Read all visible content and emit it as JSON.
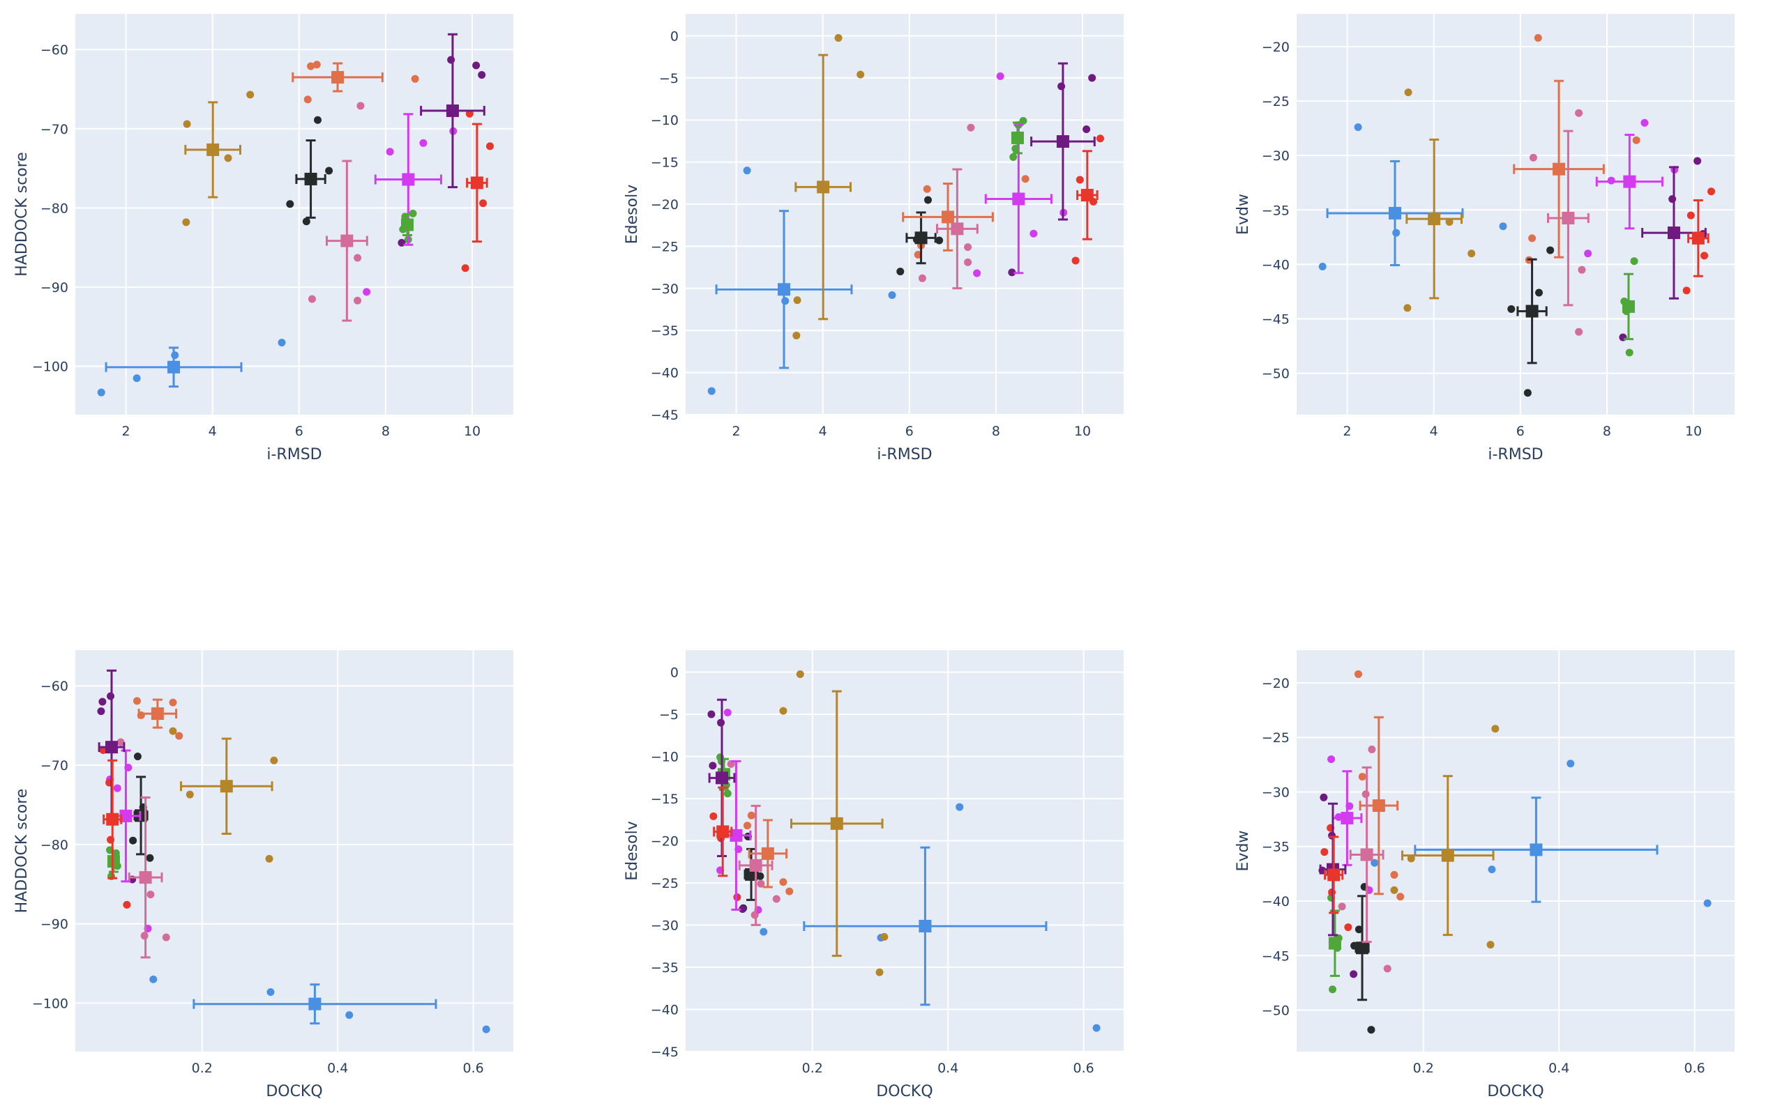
{
  "chart_data": {
    "type": "scatter",
    "description": "3x2 grid of scatter plots with per-group mean markers and standard-deviation error bars",
    "groups": [
      {
        "name": "group-blue",
        "color": "#4a90e2",
        "points": [
          {
            "irmsd": 1.43,
            "dockq": 0.619,
            "haddock": -103.3,
            "edesolv": -42.2,
            "evdw": -40.2
          },
          {
            "irmsd": 2.25,
            "dockq": 0.417,
            "haddock": -101.5,
            "edesolv": -16.0,
            "evdw": -27.4
          },
          {
            "irmsd": 3.13,
            "dockq": 0.301,
            "haddock": -98.6,
            "edesolv": -31.5,
            "evdw": -37.1
          },
          {
            "irmsd": 5.6,
            "dockq": 0.128,
            "haddock": -97.0,
            "edesolv": -30.8,
            "evdw": -36.5
          }
        ]
      },
      {
        "name": "group-gold",
        "color": "#b5852a",
        "points": [
          {
            "irmsd": 3.41,
            "dockq": 0.306,
            "haddock": -69.4,
            "edesolv": -31.4,
            "evdw": -24.2
          },
          {
            "irmsd": 3.39,
            "dockq": 0.299,
            "haddock": -81.8,
            "edesolv": -35.6,
            "evdw": -44.0
          },
          {
            "irmsd": 4.36,
            "dockq": 0.182,
            "haddock": -73.7,
            "edesolv": -0.25,
            "evdw": -36.1
          },
          {
            "irmsd": 4.87,
            "dockq": 0.157,
            "haddock": -65.7,
            "edesolv": -4.6,
            "evdw": -39.0
          }
        ]
      },
      {
        "name": "group-black",
        "color": "#262a2b",
        "points": [
          {
            "irmsd": 5.79,
            "dockq": 0.098,
            "haddock": -79.5,
            "edesolv": -28.0,
            "evdw": -44.1
          },
          {
            "irmsd": 6.17,
            "dockq": 0.123,
            "haddock": -81.7,
            "edesolv": -24.2,
            "evdw": -51.8
          },
          {
            "irmsd": 6.43,
            "dockq": 0.105,
            "haddock": -68.9,
            "edesolv": -19.5,
            "evdw": -42.6
          },
          {
            "irmsd": 6.69,
            "dockq": 0.113,
            "haddock": -75.3,
            "edesolv": -24.3,
            "evdw": -38.7
          }
        ]
      },
      {
        "name": "group-orange",
        "color": "#e0704a",
        "points": [
          {
            "irmsd": 6.27,
            "dockq": 0.157,
            "haddock": -62.1,
            "edesolv": -24.9,
            "evdw": -37.6
          },
          {
            "irmsd": 6.41,
            "dockq": 0.104,
            "haddock": -61.9,
            "edesolv": -18.2,
            "evdw": -19.2
          },
          {
            "irmsd": 6.2,
            "dockq": 0.166,
            "haddock": -66.3,
            "edesolv": -26.0,
            "evdw": -39.6
          },
          {
            "irmsd": 8.68,
            "dockq": 0.11,
            "haddock": -63.7,
            "edesolv": -17.0,
            "evdw": -28.6
          }
        ]
      },
      {
        "name": "group-pink",
        "color": "#d46c9a",
        "points": [
          {
            "irmsd": 7.42,
            "dockq": 0.08,
            "haddock": -67.1,
            "edesolv": -10.9,
            "evdw": -40.5
          },
          {
            "irmsd": 7.35,
            "dockq": 0.124,
            "haddock": -86.3,
            "edesolv": -25.1,
            "evdw": -26.1
          },
          {
            "irmsd": 6.3,
            "dockq": 0.115,
            "haddock": -91.5,
            "edesolv": -28.8,
            "evdw": -30.2
          },
          {
            "irmsd": 7.35,
            "dockq": 0.147,
            "haddock": -91.7,
            "edesolv": -26.9,
            "evdw": -46.2
          }
        ]
      },
      {
        "name": "group-magenta",
        "color": "#d33bf0",
        "points": [
          {
            "irmsd": 8.1,
            "dockq": 0.075,
            "haddock": -72.9,
            "edesolv": -4.8,
            "evdw": -32.3
          },
          {
            "irmsd": 8.87,
            "dockq": 0.064,
            "haddock": -71.8,
            "edesolv": -23.5,
            "evdw": -27.0
          },
          {
            "irmsd": 9.56,
            "dockq": 0.091,
            "haddock": -70.3,
            "edesolv": -21.0,
            "evdw": -31.3
          },
          {
            "irmsd": 7.56,
            "dockq": 0.12,
            "haddock": -90.6,
            "edesolv": -28.2,
            "evdw": -39.0
          }
        ]
      },
      {
        "name": "group-green",
        "color": "#4fa73a",
        "points": [
          {
            "irmsd": 8.63,
            "dockq": 0.064,
            "haddock": -80.7,
            "edesolv": -10.1,
            "evdw": -39.7
          },
          {
            "irmsd": 8.45,
            "dockq": 0.073,
            "haddock": -81.1,
            "edesolv": -13.4,
            "evdw": -44.3
          },
          {
            "irmsd": 8.4,
            "dockq": 0.075,
            "haddock": -82.7,
            "edesolv": -14.4,
            "evdw": -43.4
          },
          {
            "irmsd": 8.52,
            "dockq": 0.066,
            "haddock": -84.0,
            "edesolv": -10.6,
            "evdw": -48.1
          }
        ]
      },
      {
        "name": "group-purple",
        "color": "#6e1a80",
        "points": [
          {
            "irmsd": 9.51,
            "dockq": 0.065,
            "haddock": -61.3,
            "edesolv": -6.0,
            "evdw": -34.0
          },
          {
            "irmsd": 10.09,
            "dockq": 0.053,
            "haddock": -62.0,
            "edesolv": -11.1,
            "evdw": -30.5
          },
          {
            "irmsd": 10.22,
            "dockq": 0.051,
            "haddock": -63.2,
            "edesolv": -5.0,
            "evdw": -37.2
          },
          {
            "irmsd": 8.37,
            "dockq": 0.097,
            "haddock": -84.4,
            "edesolv": -28.1,
            "evdw": -46.7
          }
        ]
      },
      {
        "name": "group-red",
        "color": "#e8372a",
        "points": [
          {
            "irmsd": 9.94,
            "dockq": 0.054,
            "haddock": -68.1,
            "edesolv": -17.1,
            "evdw": -35.5
          },
          {
            "irmsd": 10.41,
            "dockq": 0.063,
            "haddock": -72.2,
            "edesolv": -12.2,
            "evdw": -33.3
          },
          {
            "irmsd": 10.25,
            "dockq": 0.065,
            "haddock": -79.4,
            "edesolv": -19.7,
            "evdw": -39.2
          },
          {
            "irmsd": 9.84,
            "dockq": 0.089,
            "haddock": -87.6,
            "edesolv": -26.7,
            "evdw": -42.4
          }
        ]
      }
    ],
    "error_bars": "population standard deviation around group mean (square marker)",
    "axes": {
      "irmsd": {
        "title": "i-RMSD",
        "range": [
          0.83,
          10.95
        ],
        "ticks": [
          2,
          4,
          6,
          8,
          10
        ],
        "tick_labels": [
          "2",
          "4",
          "6",
          "8",
          "10"
        ]
      },
      "dockq": {
        "title": "DOCKQ",
        "range": [
          0.013,
          0.659
        ],
        "ticks": [
          0.2,
          0.4,
          0.6
        ],
        "tick_labels": [
          "0.2",
          "0.4",
          "0.6"
        ]
      },
      "haddock": {
        "title": "HADDOCK score",
        "range": [
          -106.1,
          -55.5
        ],
        "ticks": [
          -60,
          -70,
          -80,
          -90,
          -100
        ],
        "tick_labels": [
          "−60",
          "−70",
          "−80",
          "−90",
          "−100"
        ]
      },
      "edesolv": {
        "title": "Edesolv",
        "range": [
          -45,
          2.6
        ],
        "ticks": [
          0,
          -5,
          -10,
          -15,
          -20,
          -25,
          -30,
          -35,
          -40,
          -45
        ],
        "tick_labels": [
          "0",
          "−5",
          "−10",
          "−15",
          "−20",
          "−25",
          "−30",
          "−35",
          "−40",
          "−45"
        ]
      },
      "evdw": {
        "title": "Evdw",
        "range": [
          -53.8,
          -17.0
        ],
        "ticks": [
          -20,
          -25,
          -30,
          -35,
          -40,
          -45,
          -50
        ],
        "tick_labels": [
          "−20",
          "−25",
          "−30",
          "−35",
          "−40",
          "−45",
          "−50"
        ]
      }
    },
    "panels": [
      {
        "name": "haddock-vs-irmsd",
        "x": "irmsd",
        "y": "haddock",
        "grid": true
      },
      {
        "name": "edesolv-vs-irmsd",
        "x": "irmsd",
        "y": "edesolv",
        "grid": true
      },
      {
        "name": "evdw-vs-irmsd",
        "x": "irmsd",
        "y": "evdw",
        "grid": true
      },
      {
        "name": "haddock-vs-dockq",
        "x": "dockq",
        "y": "haddock",
        "grid": true
      },
      {
        "name": "edesolv-vs-dockq",
        "x": "dockq",
        "y": "edesolv",
        "grid": true
      },
      {
        "name": "evdw-vs-dockq",
        "x": "dockq",
        "y": "evdw",
        "grid": true
      }
    ]
  }
}
